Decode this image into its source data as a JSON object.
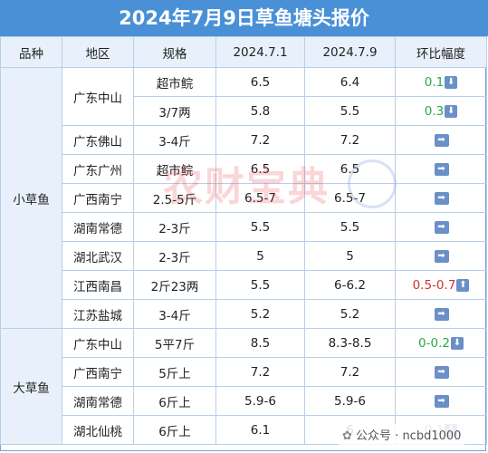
{
  "title": "2024年7月9日草鱼塘头报价",
  "headers": [
    "品种",
    "地区",
    "规格",
    "2024.7.1",
    "2024.7.9",
    "环比幅度"
  ],
  "categories": {
    "small": "小草鱼",
    "big": "大草鱼"
  },
  "rows": [
    {
      "region": "广东中山",
      "spec": "超市鲩",
      "p1": "6.5",
      "p2": "6.4",
      "chg": "0.1",
      "dir": "down"
    },
    {
      "region": "",
      "spec": "3/7两",
      "p1": "5.8",
      "p2": "5.5",
      "chg": "0.3",
      "dir": "down"
    },
    {
      "region": "广东佛山",
      "spec": "3-4斤",
      "p1": "7.2",
      "p2": "7.2",
      "chg": "",
      "dir": "flat"
    },
    {
      "region": "广东广州",
      "spec": "超市鲩",
      "p1": "6.5",
      "p2": "6.5",
      "chg": "",
      "dir": "flat"
    },
    {
      "region": "广西南宁",
      "spec": "2.5-5斤",
      "p1": "6.5-7",
      "p2": "6.5-7",
      "chg": "",
      "dir": "flat"
    },
    {
      "region": "湖南常德",
      "spec": "2-3斤",
      "p1": "5.5",
      "p2": "5.5",
      "chg": "",
      "dir": "flat"
    },
    {
      "region": "湖北武汉",
      "spec": "2-3斤",
      "p1": "5",
      "p2": "5",
      "chg": "",
      "dir": "flat"
    },
    {
      "region": "江西南昌",
      "spec": "2斤23两",
      "p1": "5.5",
      "p2": "6-6.2",
      "chg": "0.5-0.7",
      "dir": "up"
    },
    {
      "region": "江苏盐城",
      "spec": "3-4斤",
      "p1": "5.2",
      "p2": "5.2",
      "chg": "",
      "dir": "flat"
    },
    {
      "region": "广东中山",
      "spec": "5平7斤",
      "p1": "8.5",
      "p2": "8.3-8.5",
      "chg": "0-0.2",
      "dir": "down"
    },
    {
      "region": "广西南宁",
      "spec": "5斤上",
      "p1": "7.2",
      "p2": "7.2",
      "chg": "",
      "dir": "flat"
    },
    {
      "region": "湖南常德",
      "spec": "6斤上",
      "p1": "5.9-6",
      "p2": "5.9-6",
      "chg": "",
      "dir": "flat"
    },
    {
      "region": "湖北仙桃",
      "spec": "6斤上",
      "p1": "6.1",
      "p2": "6",
      "chg": "0.1",
      "dir": "down"
    }
  ],
  "watermark": "农财宝典",
  "footer": "公众号 · ncbd1000"
}
